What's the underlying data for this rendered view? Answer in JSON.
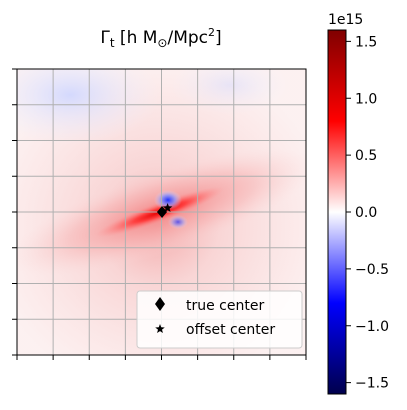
{
  "chart_data": {
    "type": "heatmap",
    "title": "Γt [h M⊙/Mpc²]",
    "colorbar": {
      "label": "",
      "offset_text": "1e15",
      "range": [
        -1600000000000000.0,
        1600000000000000.0
      ],
      "ticks": [
        -1.5,
        -1.0,
        -0.5,
        0.0,
        0.5,
        1.0,
        1.5
      ],
      "tick_labels": [
        "−1.5",
        "−1.0",
        "−0.5",
        "0.0",
        "0.5",
        "1.0",
        "1.5"
      ],
      "colormap": "seismic"
    },
    "grid": true,
    "x_tick_count": 9,
    "y_tick_count": 9,
    "markers": [
      {
        "name": "true center",
        "symbol": "diamond",
        "x": 0.0,
        "y": 0.0
      },
      {
        "name": "offset center",
        "symbol": "star",
        "x": 0.35,
        "y": 0.25
      }
    ],
    "legend": {
      "placement": "lower-right",
      "entries": [
        {
          "label": "true center",
          "symbol": "diamond"
        },
        {
          "label": "offset center",
          "symbol": "star"
        }
      ]
    },
    "field": {
      "description_values": [
        {
          "region": "central-streak",
          "value": 1100000000000000.0
        },
        {
          "region": "diagonal-band",
          "value": 250000000000000.0
        },
        {
          "region": "background",
          "value": 80000000000000.0
        },
        {
          "region": "upper-left-corner",
          "value": -60000000000000.0
        },
        {
          "region": "center-dipole-negative",
          "value": -1200000000000000.0
        }
      ]
    }
  }
}
